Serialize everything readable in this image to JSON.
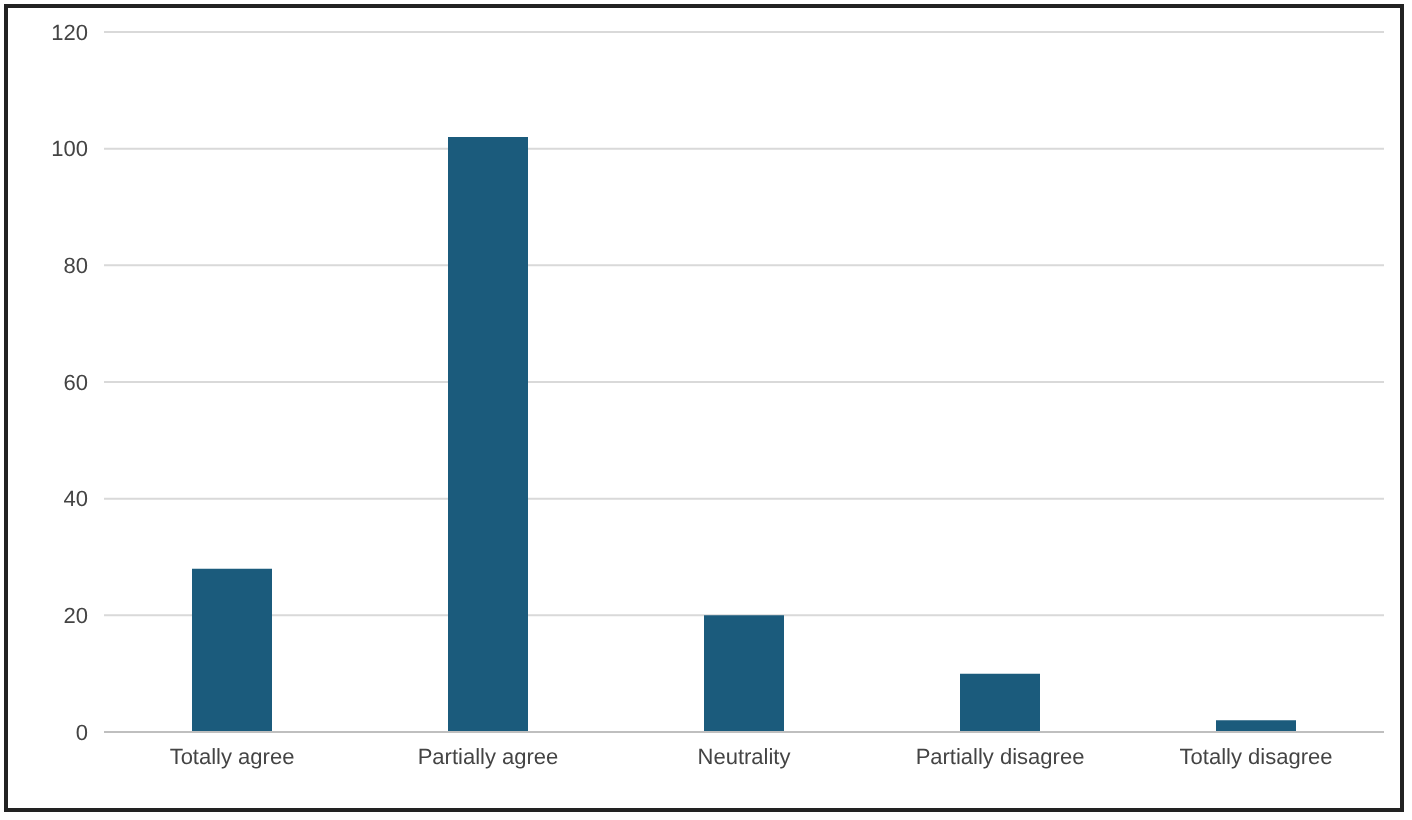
{
  "chart_data": {
    "type": "bar",
    "categories": [
      "Totally agree",
      "Partially agree",
      "Neutrality",
      "Partially disagree",
      "Totally disagree"
    ],
    "values": [
      28,
      102,
      20,
      10,
      2
    ],
    "color": "#1b5b7c",
    "ylim": [
      0,
      120
    ],
    "yticks": [
      0,
      20,
      40,
      60,
      80,
      100,
      120
    ],
    "grid": "y",
    "legend": false
  }
}
